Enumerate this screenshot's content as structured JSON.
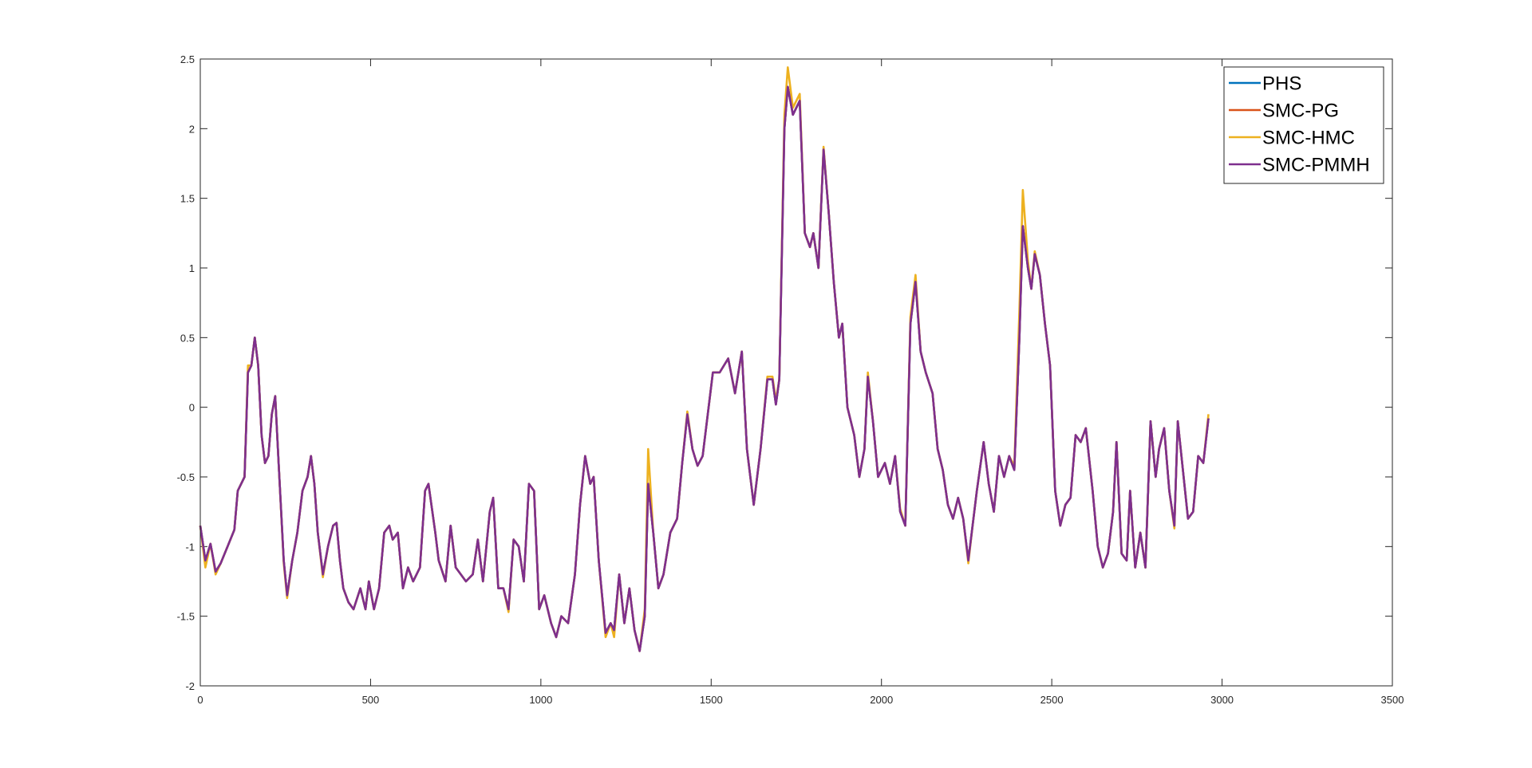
{
  "chart_data": {
    "type": "line",
    "xlim": [
      0,
      3500
    ],
    "xticks": [
      0,
      500,
      1000,
      1500,
      2000,
      2500,
      3000,
      3500
    ],
    "ylim": [
      -2,
      2.5
    ],
    "yticks": [
      -2,
      -1.5,
      -1,
      -0.5,
      0,
      0.5,
      1,
      1.5,
      2,
      2.5
    ],
    "grid": false,
    "legend": "northeast",
    "x": [
      0,
      15,
      30,
      45,
      60,
      80,
      100,
      110,
      130,
      140,
      150,
      160,
      170,
      180,
      190,
      200,
      210,
      220,
      230,
      245,
      255,
      270,
      285,
      300,
      315,
      325,
      335,
      345,
      360,
      375,
      390,
      400,
      410,
      420,
      435,
      450,
      470,
      485,
      495,
      510,
      525,
      540,
      555,
      565,
      580,
      595,
      610,
      625,
      645,
      660,
      670,
      690,
      700,
      720,
      735,
      750,
      765,
      780,
      800,
      815,
      830,
      850,
      860,
      875,
      890,
      905,
      920,
      935,
      950,
      965,
      980,
      995,
      1010,
      1030,
      1045,
      1060,
      1080,
      1100,
      1115,
      1130,
      1145,
      1155,
      1170,
      1190,
      1205,
      1215,
      1230,
      1245,
      1260,
      1275,
      1290,
      1305,
      1315,
      1330,
      1345,
      1360,
      1380,
      1400,
      1415,
      1430,
      1445,
      1460,
      1475,
      1490,
      1505,
      1525,
      1550,
      1570,
      1590,
      1605,
      1625,
      1645,
      1665,
      1680,
      1690,
      1700,
      1715,
      1725,
      1740,
      1760,
      1775,
      1790,
      1800,
      1815,
      1830,
      1845,
      1860,
      1875,
      1885,
      1900,
      1920,
      1935,
      1950,
      1960,
      1975,
      1990,
      2010,
      2025,
      2040,
      2055,
      2070,
      2085,
      2100,
      2115,
      2130,
      2150,
      2165,
      2180,
      2195,
      2210,
      2225,
      2240,
      2255,
      2270,
      2280,
      2300,
      2315,
      2330,
      2345,
      2360,
      2375,
      2390,
      2405,
      2415,
      2430,
      2440,
      2450,
      2465,
      2480,
      2495,
      2510,
      2525,
      2540,
      2555,
      2570,
      2585,
      2600,
      2620,
      2635,
      2650,
      2665,
      2680,
      2690,
      2705,
      2720,
      2730,
      2745,
      2760,
      2775,
      2790,
      2805,
      2815,
      2830,
      2845,
      2860,
      2870,
      2885,
      2900,
      2915,
      2930,
      2945,
      2960
    ],
    "series": [
      {
        "name": "PHS",
        "color": "#0072BD",
        "values": [
          -0.85,
          -1.1,
          -0.98,
          -1.18,
          -1.12,
          -1.0,
          -0.88,
          -0.6,
          -0.5,
          0.25,
          0.3,
          0.5,
          0.3,
          -0.2,
          -0.4,
          -0.35,
          -0.05,
          0.08,
          -0.4,
          -1.1,
          -1.35,
          -1.1,
          -0.9,
          -0.6,
          -0.5,
          -0.35,
          -0.55,
          -0.9,
          -1.2,
          -1.0,
          -0.85,
          -0.83,
          -1.1,
          -1.3,
          -1.4,
          -1.45,
          -1.3,
          -1.45,
          -1.25,
          -1.45,
          -1.3,
          -0.9,
          -0.85,
          -0.95,
          -0.9,
          -1.3,
          -1.15,
          -1.25,
          -1.15,
          -0.6,
          -0.55,
          -0.9,
          -1.1,
          -1.25,
          -0.85,
          -1.15,
          -1.2,
          -1.25,
          -1.2,
          -0.95,
          -1.25,
          -0.75,
          -0.65,
          -1.3,
          -1.3,
          -1.45,
          -0.95,
          -1.0,
          -1.25,
          -0.55,
          -0.6,
          -1.45,
          -1.35,
          -1.55,
          -1.65,
          -1.5,
          -1.55,
          -1.2,
          -0.7,
          -0.35,
          -0.55,
          -0.5,
          -1.1,
          -1.62,
          -1.55,
          -1.6,
          -1.2,
          -1.55,
          -1.3,
          -1.6,
          -1.75,
          -1.5,
          -0.55,
          -0.9,
          -1.3,
          -1.2,
          -0.9,
          -0.8,
          -0.4,
          -0.05,
          -0.3,
          -0.42,
          -0.35,
          -0.05,
          0.25,
          0.25,
          0.35,
          0.1,
          0.4,
          -0.3,
          -0.7,
          -0.3,
          0.2,
          0.2,
          0.02,
          0.2,
          2.0,
          2.3,
          2.1,
          2.2,
          1.25,
          1.15,
          1.25,
          1.0,
          1.85,
          1.4,
          0.9,
          0.5,
          0.6,
          0.0,
          -0.2,
          -0.5,
          -0.3,
          0.22,
          -0.1,
          -0.5,
          -0.4,
          -0.55,
          -0.35,
          -0.75,
          -0.85,
          0.6,
          0.9,
          0.4,
          0.25,
          0.1,
          -0.3,
          -0.45,
          -0.7,
          -0.8,
          -0.65,
          -0.8,
          -1.1,
          -0.8,
          -0.6,
          -0.25,
          -0.55,
          -0.75,
          -0.35,
          -0.5,
          -0.35,
          -0.45,
          0.5,
          1.3,
          1.0,
          0.85,
          1.1,
          0.95,
          0.6,
          0.3,
          -0.6,
          -0.85,
          -0.7,
          -0.65,
          -0.2,
          -0.25,
          -0.15,
          -0.6,
          -1.0,
          -1.15,
          -1.05,
          -0.75,
          -0.25,
          -1.05,
          -1.1,
          -0.6,
          -1.15,
          -0.9,
          -1.15,
          -0.1,
          -0.5,
          -0.3,
          -0.15,
          -0.6,
          -0.85,
          -0.1,
          -0.45,
          -0.8,
          -0.75,
          -0.35,
          -0.4,
          -0.08
        ]
      },
      {
        "name": "SMC-PG",
        "color": "#D95319",
        "values": [
          -0.85,
          -1.1,
          -0.98,
          -1.18,
          -1.12,
          -1.0,
          -0.88,
          -0.6,
          -0.5,
          0.25,
          0.3,
          0.5,
          0.3,
          -0.2,
          -0.4,
          -0.35,
          -0.05,
          0.08,
          -0.4,
          -1.1,
          -1.35,
          -1.1,
          -0.9,
          -0.6,
          -0.5,
          -0.35,
          -0.55,
          -0.9,
          -1.2,
          -1.0,
          -0.85,
          -0.83,
          -1.1,
          -1.3,
          -1.4,
          -1.45,
          -1.3,
          -1.45,
          -1.25,
          -1.45,
          -1.3,
          -0.9,
          -0.85,
          -0.95,
          -0.9,
          -1.3,
          -1.15,
          -1.25,
          -1.15,
          -0.6,
          -0.55,
          -0.9,
          -1.1,
          -1.25,
          -0.85,
          -1.15,
          -1.2,
          -1.25,
          -1.2,
          -0.95,
          -1.25,
          -0.75,
          -0.65,
          -1.3,
          -1.3,
          -1.45,
          -0.95,
          -1.0,
          -1.25,
          -0.55,
          -0.6,
          -1.45,
          -1.35,
          -1.55,
          -1.65,
          -1.5,
          -1.55,
          -1.2,
          -0.7,
          -0.35,
          -0.55,
          -0.5,
          -1.1,
          -1.62,
          -1.55,
          -1.6,
          -1.2,
          -1.55,
          -1.3,
          -1.6,
          -1.75,
          -1.5,
          -0.55,
          -0.9,
          -1.3,
          -1.2,
          -0.9,
          -0.8,
          -0.4,
          -0.05,
          -0.3,
          -0.42,
          -0.35,
          -0.05,
          0.25,
          0.25,
          0.35,
          0.1,
          0.4,
          -0.3,
          -0.7,
          -0.3,
          0.2,
          0.2,
          0.02,
          0.2,
          2.0,
          2.3,
          2.1,
          2.2,
          1.25,
          1.15,
          1.25,
          1.0,
          1.85,
          1.4,
          0.9,
          0.5,
          0.6,
          0.0,
          -0.2,
          -0.5,
          -0.3,
          0.22,
          -0.1,
          -0.5,
          -0.4,
          -0.55,
          -0.35,
          -0.75,
          -0.85,
          0.6,
          0.9,
          0.4,
          0.25,
          0.1,
          -0.3,
          -0.45,
          -0.7,
          -0.8,
          -0.65,
          -0.8,
          -1.1,
          -0.8,
          -0.6,
          -0.25,
          -0.55,
          -0.75,
          -0.35,
          -0.5,
          -0.35,
          -0.45,
          0.5,
          1.3,
          1.0,
          0.85,
          1.1,
          0.95,
          0.6,
          0.3,
          -0.6,
          -0.85,
          -0.7,
          -0.65,
          -0.2,
          -0.25,
          -0.15,
          -0.6,
          -1.0,
          -1.15,
          -1.05,
          -0.75,
          -0.25,
          -1.05,
          -1.1,
          -0.6,
          -1.15,
          -0.9,
          -1.15,
          -0.1,
          -0.5,
          -0.3,
          -0.15,
          -0.6,
          -0.85,
          -0.1,
          -0.45,
          -0.8,
          -0.75,
          -0.35,
          -0.4,
          -0.08
        ]
      },
      {
        "name": "SMC-HMC",
        "color": "#EDB120",
        "values": [
          -0.85,
          -1.15,
          -0.98,
          -1.2,
          -1.12,
          -1.0,
          -0.88,
          -0.6,
          -0.5,
          0.3,
          0.3,
          0.5,
          0.3,
          -0.2,
          -0.4,
          -0.35,
          -0.05,
          0.08,
          -0.4,
          -1.12,
          -1.37,
          -1.1,
          -0.9,
          -0.6,
          -0.5,
          -0.35,
          -0.55,
          -0.9,
          -1.22,
          -1.0,
          -0.85,
          -0.83,
          -1.1,
          -1.3,
          -1.4,
          -1.45,
          -1.3,
          -1.45,
          -1.25,
          -1.45,
          -1.3,
          -0.9,
          -0.85,
          -0.95,
          -0.9,
          -1.3,
          -1.15,
          -1.25,
          -1.15,
          -0.6,
          -0.55,
          -0.9,
          -1.1,
          -1.25,
          -0.85,
          -1.15,
          -1.2,
          -1.25,
          -1.2,
          -0.95,
          -1.25,
          -0.75,
          -0.65,
          -1.3,
          -1.3,
          -1.47,
          -0.95,
          -1.0,
          -1.25,
          -0.55,
          -0.6,
          -1.45,
          -1.35,
          -1.55,
          -1.65,
          -1.5,
          -1.55,
          -1.2,
          -0.7,
          -0.35,
          -0.55,
          -0.5,
          -1.1,
          -1.65,
          -1.55,
          -1.65,
          -1.2,
          -1.55,
          -1.3,
          -1.6,
          -1.75,
          -1.45,
          -0.3,
          -0.9,
          -1.3,
          -1.2,
          -0.9,
          -0.8,
          -0.4,
          -0.03,
          -0.3,
          -0.42,
          -0.35,
          -0.05,
          0.25,
          0.25,
          0.35,
          0.1,
          0.4,
          -0.3,
          -0.7,
          -0.3,
          0.22,
          0.22,
          0.05,
          0.2,
          2.1,
          2.44,
          2.15,
          2.25,
          1.25,
          1.15,
          1.25,
          1.0,
          1.87,
          1.4,
          0.9,
          0.5,
          0.6,
          0.0,
          -0.2,
          -0.5,
          -0.3,
          0.25,
          -0.1,
          -0.5,
          -0.4,
          -0.55,
          -0.35,
          -0.73,
          -0.85,
          0.65,
          0.95,
          0.4,
          0.25,
          0.1,
          -0.3,
          -0.45,
          -0.7,
          -0.8,
          -0.65,
          -0.8,
          -1.12,
          -0.8,
          -0.6,
          -0.25,
          -0.55,
          -0.75,
          -0.35,
          -0.5,
          -0.35,
          -0.42,
          0.7,
          1.56,
          1.05,
          0.85,
          1.12,
          0.95,
          0.6,
          0.3,
          -0.6,
          -0.85,
          -0.7,
          -0.65,
          -0.2,
          -0.25,
          -0.15,
          -0.6,
          -1.0,
          -1.15,
          -1.05,
          -0.75,
          -0.25,
          -1.05,
          -1.1,
          -0.6,
          -1.15,
          -0.9,
          -1.15,
          -0.1,
          -0.5,
          -0.3,
          -0.15,
          -0.6,
          -0.87,
          -0.1,
          -0.45,
          -0.8,
          -0.75,
          -0.35,
          -0.4,
          -0.05
        ]
      },
      {
        "name": "SMC-PMMH",
        "color": "#7E2F8E",
        "values": [
          -0.85,
          -1.1,
          -0.98,
          -1.18,
          -1.12,
          -1.0,
          -0.88,
          -0.6,
          -0.5,
          0.25,
          0.3,
          0.5,
          0.3,
          -0.2,
          -0.4,
          -0.35,
          -0.05,
          0.08,
          -0.4,
          -1.1,
          -1.35,
          -1.1,
          -0.9,
          -0.6,
          -0.5,
          -0.35,
          -0.55,
          -0.9,
          -1.2,
          -1.0,
          -0.85,
          -0.83,
          -1.1,
          -1.3,
          -1.4,
          -1.45,
          -1.3,
          -1.45,
          -1.25,
          -1.45,
          -1.3,
          -0.9,
          -0.85,
          -0.95,
          -0.9,
          -1.3,
          -1.15,
          -1.25,
          -1.15,
          -0.6,
          -0.55,
          -0.9,
          -1.1,
          -1.25,
          -0.85,
          -1.15,
          -1.2,
          -1.25,
          -1.2,
          -0.95,
          -1.25,
          -0.75,
          -0.65,
          -1.3,
          -1.3,
          -1.45,
          -0.95,
          -1.0,
          -1.25,
          -0.55,
          -0.6,
          -1.45,
          -1.35,
          -1.55,
          -1.65,
          -1.5,
          -1.55,
          -1.2,
          -0.7,
          -0.35,
          -0.55,
          -0.5,
          -1.1,
          -1.62,
          -1.55,
          -1.6,
          -1.2,
          -1.55,
          -1.3,
          -1.6,
          -1.75,
          -1.5,
          -0.55,
          -0.9,
          -1.3,
          -1.2,
          -0.9,
          -0.8,
          -0.4,
          -0.05,
          -0.3,
          -0.42,
          -0.35,
          -0.05,
          0.25,
          0.25,
          0.35,
          0.1,
          0.4,
          -0.3,
          -0.7,
          -0.3,
          0.2,
          0.2,
          0.02,
          0.2,
          2.0,
          2.3,
          2.1,
          2.2,
          1.25,
          1.15,
          1.25,
          1.0,
          1.85,
          1.4,
          0.9,
          0.5,
          0.6,
          0.0,
          -0.2,
          -0.5,
          -0.3,
          0.22,
          -0.1,
          -0.5,
          -0.4,
          -0.55,
          -0.35,
          -0.75,
          -0.85,
          0.6,
          0.9,
          0.4,
          0.25,
          0.1,
          -0.3,
          -0.45,
          -0.7,
          -0.8,
          -0.65,
          -0.8,
          -1.1,
          -0.8,
          -0.6,
          -0.25,
          -0.55,
          -0.75,
          -0.35,
          -0.5,
          -0.35,
          -0.45,
          0.5,
          1.3,
          1.0,
          0.85,
          1.1,
          0.95,
          0.6,
          0.3,
          -0.6,
          -0.85,
          -0.7,
          -0.65,
          -0.2,
          -0.25,
          -0.15,
          -0.6,
          -1.0,
          -1.15,
          -1.05,
          -0.75,
          -0.25,
          -1.05,
          -1.1,
          -0.6,
          -1.15,
          -0.9,
          -1.15,
          -0.1,
          -0.5,
          -0.3,
          -0.15,
          -0.6,
          -0.85,
          -0.1,
          -0.45,
          -0.8,
          -0.75,
          -0.35,
          -0.4,
          -0.08
        ]
      }
    ]
  }
}
